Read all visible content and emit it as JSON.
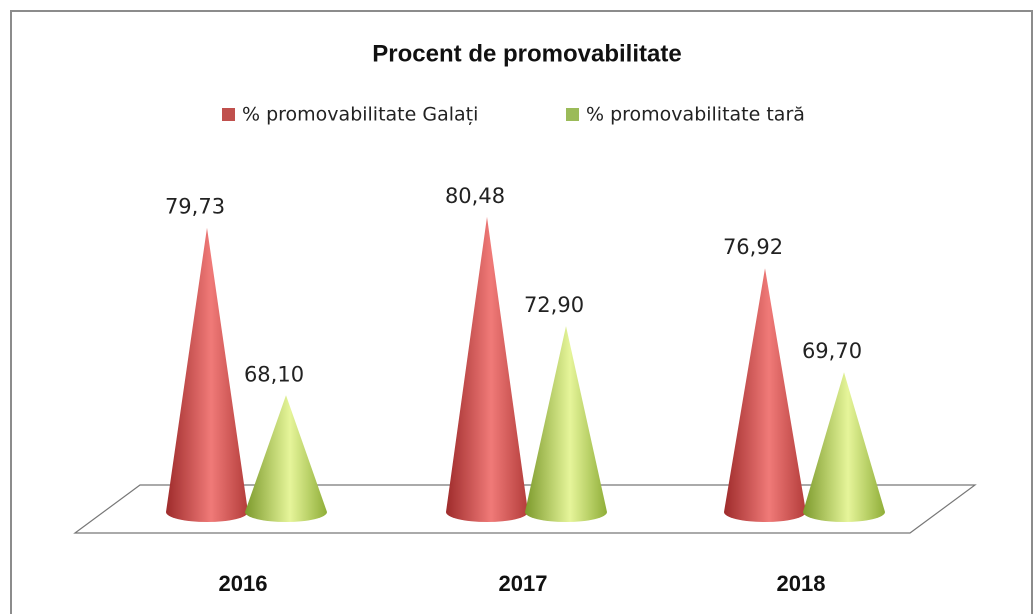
{
  "chart_data": {
    "type": "cone",
    "title": "Procent de promovabilitate",
    "categories": [
      "2016",
      "2017",
      "2018"
    ],
    "series": [
      {
        "name": "% promovabilitate Galați",
        "color": "#c0504d",
        "values": [
          79.73,
          80.48,
          76.92
        ],
        "value_labels": [
          "79,73",
          "80,48",
          "76,92"
        ]
      },
      {
        "name": "% promovabilitate tară",
        "color": "#9bbb59",
        "values": [
          68.1,
          72.9,
          69.7
        ],
        "value_labels": [
          "68,10",
          "72,90",
          "69,70"
        ]
      }
    ],
    "ylim": [
      60,
      82
    ]
  }
}
